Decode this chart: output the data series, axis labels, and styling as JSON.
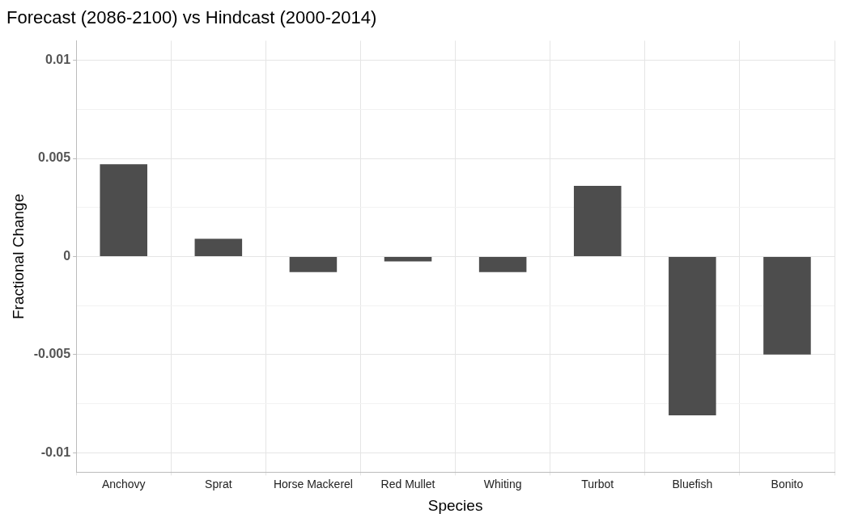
{
  "chart_data": {
    "type": "bar",
    "title": "Forecast (2086-2100) vs Hindcast (2000-2014)",
    "xlabel": "Species",
    "ylabel": "Fractional Change",
    "categories": [
      "Anchovy",
      "Sprat",
      "Horse Mackerel",
      "Red Mullet",
      "Whiting",
      "Turbot",
      "Bluefish",
      "Bonito"
    ],
    "values": [
      0.0047,
      0.0009,
      -0.0008,
      -0.00025,
      -0.0008,
      0.0036,
      -0.0081,
      -0.005
    ],
    "color": "#4d4d4d",
    "ylim": [
      -0.011,
      0.011
    ],
    "yticks": [
      -0.01,
      {
        "value": -0.0075,
        "label": null
      },
      -0.005,
      {
        "value": -0.0025,
        "label": null
      },
      0,
      {
        "value": 0.0025,
        "label": null
      },
      0.005,
      {
        "value": 0.0075,
        "label": null
      },
      0.01
    ],
    "grid": true,
    "legend": false
  }
}
